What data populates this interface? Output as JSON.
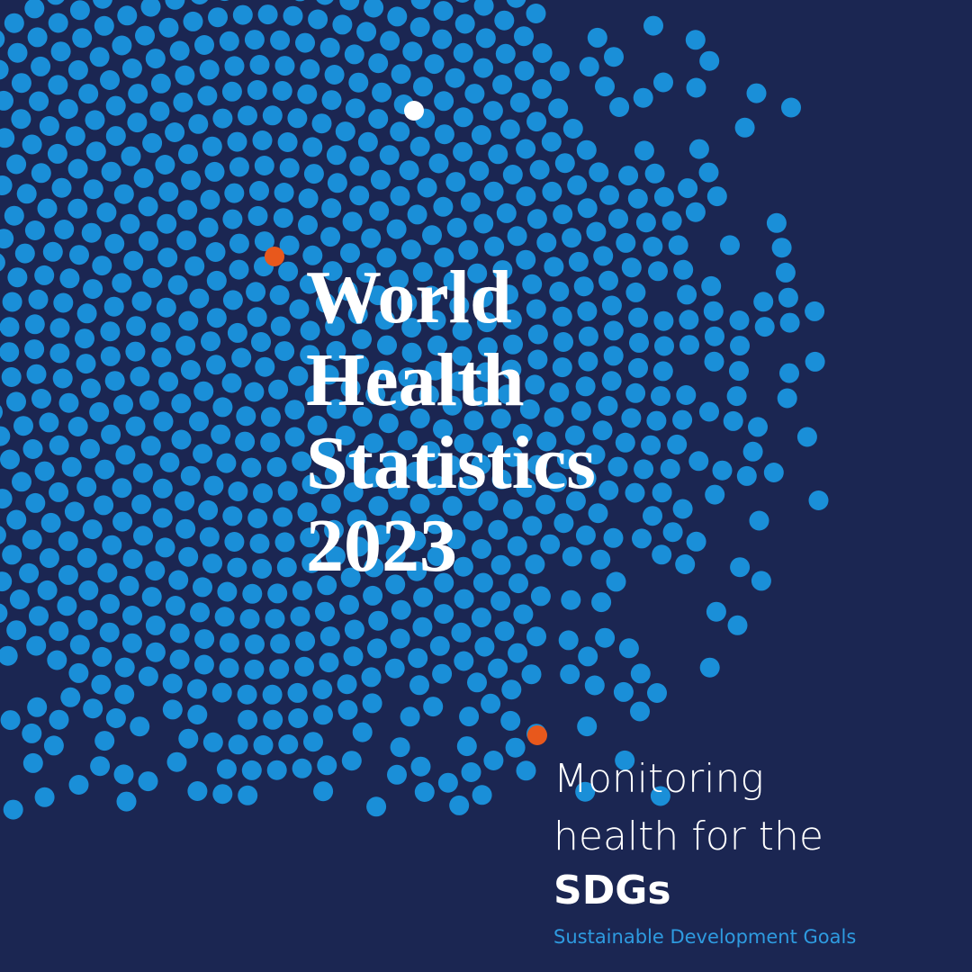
{
  "title": {
    "lines": [
      "World",
      "Health",
      "Statistics",
      "2023"
    ]
  },
  "subtitle": {
    "lines": [
      "Monitoring",
      "health for the"
    ],
    "emphasis": "SDGs",
    "expansion": "Sustainable Development Goals"
  }
}
